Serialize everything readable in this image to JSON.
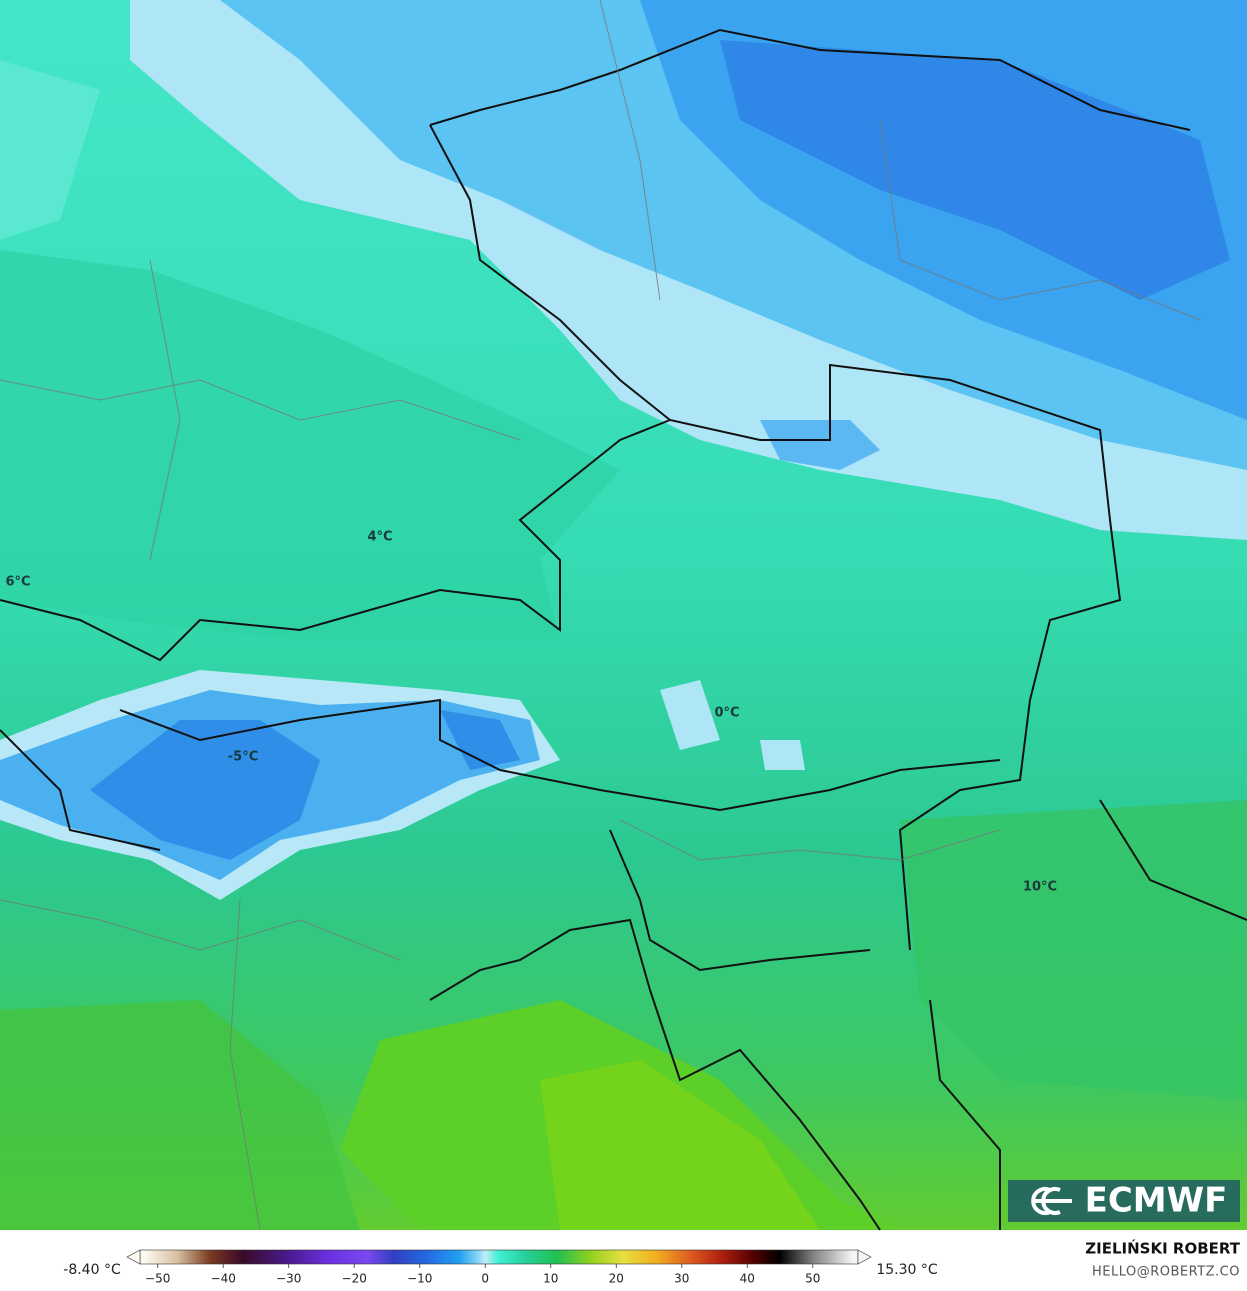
{
  "map": {
    "contour_labels": [
      "4°C",
      "6°C",
      "0°C",
      "-5°C",
      "10°C"
    ],
    "logo": "ECMWF",
    "colorbar": {
      "min_label": "-8.40 °C",
      "max_label": "15.30 °C",
      "lim": [
        -52.7,
        56.9
      ],
      "ticks": [
        {
          "value": -50,
          "label": "−50"
        },
        {
          "value": -40,
          "label": "−40"
        },
        {
          "value": -30,
          "label": "−30"
        },
        {
          "value": -20,
          "label": "−20"
        },
        {
          "value": -10,
          "label": "−10"
        },
        0,
        10,
        20,
        30,
        40,
        50
      ],
      "colors": [
        {
          "value": -52,
          "color": "#fdfaf2"
        },
        {
          "value": -47,
          "color": "#d8c0a0"
        },
        {
          "value": -42,
          "color": "#7a3a20"
        },
        {
          "value": -37,
          "color": "#3a0a28"
        },
        {
          "value": -30,
          "color": "#4a1a90"
        },
        {
          "value": -24,
          "color": "#6a30e0"
        },
        {
          "value": -18,
          "color": "#7a48f0"
        },
        {
          "value": -14,
          "color": "#3040c0"
        },
        {
          "value": -9,
          "color": "#2468e0"
        },
        {
          "value": -4,
          "color": "#20a0f0"
        },
        {
          "value": -1,
          "color": "#8ad8f8"
        },
        {
          "value": 0,
          "color": "#c0ecf8"
        },
        {
          "value": 2,
          "color": "#40f0d4"
        },
        {
          "value": 6,
          "color": "#28d09c"
        },
        {
          "value": 11,
          "color": "#20c050"
        },
        {
          "value": 16,
          "color": "#90d020"
        },
        {
          "value": 21,
          "color": "#e8e040"
        },
        {
          "value": 26,
          "color": "#f0b020"
        },
        {
          "value": 31,
          "color": "#e06020"
        },
        {
          "value": 36,
          "color": "#b02010"
        },
        {
          "value": 41,
          "color": "#500000"
        },
        {
          "value": 45,
          "color": "#000000"
        },
        {
          "value": 50,
          "color": "#808080"
        },
        {
          "value": 56,
          "color": "#f4f4f4"
        }
      ]
    },
    "credit": {
      "name": "ZIELIŃSKI ROBERT",
      "contact": "HELLO@ROBERTZ.CO"
    }
  }
}
